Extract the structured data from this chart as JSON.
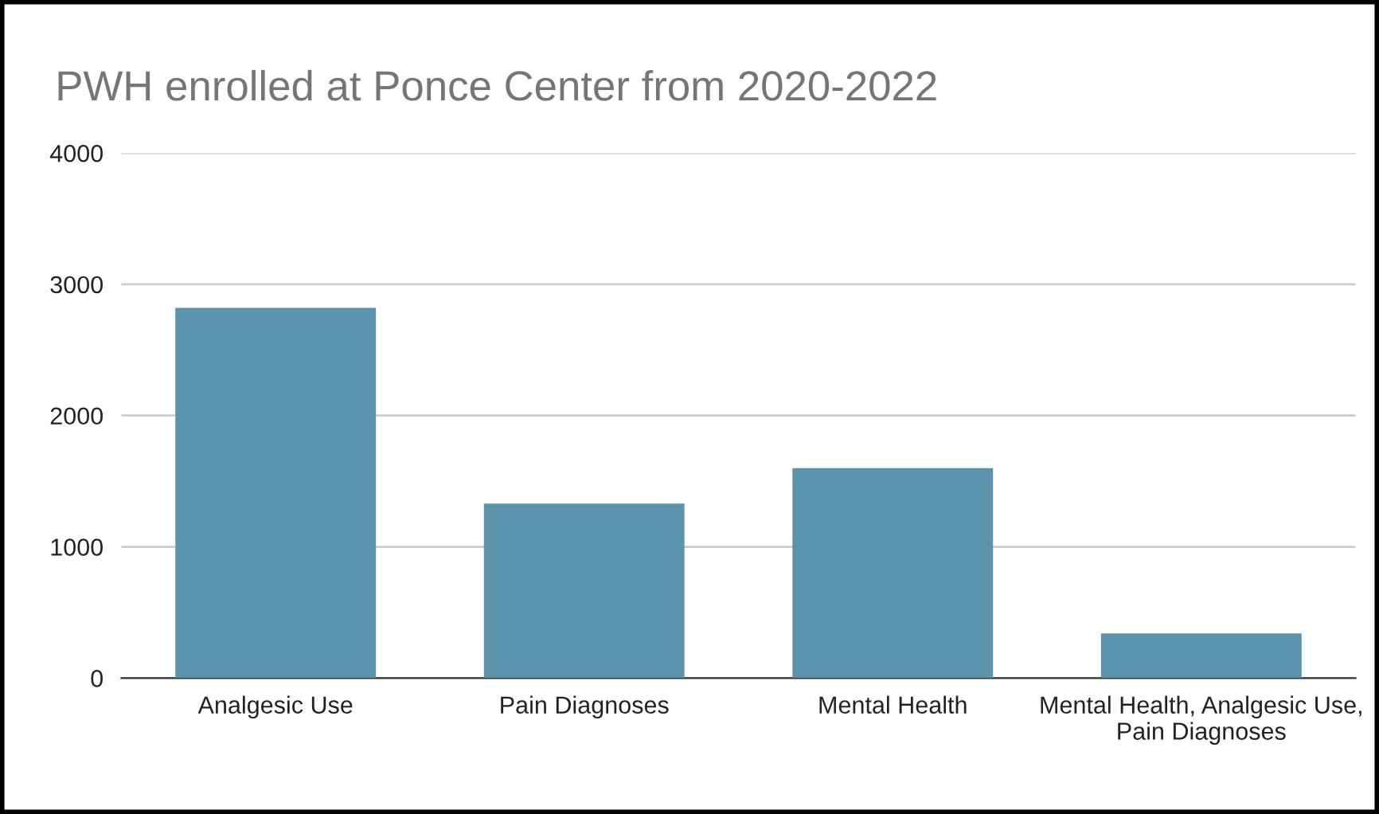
{
  "chart_data": {
    "type": "bar",
    "title": "PWH enrolled at Ponce Center from 2020-2022",
    "categories": [
      "Analgesic Use",
      "Pain Diagnoses",
      "Mental Health",
      "Mental Health, Analgesic Use, Pain Diagnoses"
    ],
    "values": [
      2820,
      1330,
      1600,
      340
    ],
    "color": "#5b93ae",
    "ylim": [
      0,
      4000
    ],
    "yticks": [
      0,
      1000,
      2000,
      3000,
      4000
    ],
    "grid": "y"
  }
}
